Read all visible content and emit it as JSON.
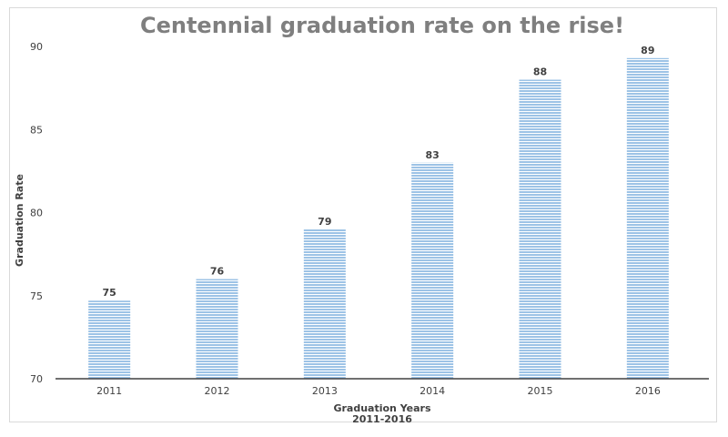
{
  "chart_data": {
    "type": "bar",
    "title": "Centennial graduation rate on the rise!",
    "xlabel": "Graduation Years",
    "xlabel_sub": "2011-2016",
    "ylabel": "Graduation Rate",
    "categories": [
      "2011",
      "2012",
      "2013",
      "2014",
      "2015",
      "2016"
    ],
    "values": [
      74.7,
      76,
      79,
      83,
      88,
      89.3
    ],
    "data_labels": [
      "75",
      "76",
      "79",
      "83",
      "88",
      "89"
    ],
    "ylim": [
      70,
      90
    ],
    "yticks": [
      "70",
      "75",
      "80",
      "85",
      "90"
    ],
    "grid": false,
    "legend": "none",
    "bar_color": "#9dc3e6",
    "bar_stripe_color": "#ffffff",
    "axis_color": "#404040"
  }
}
